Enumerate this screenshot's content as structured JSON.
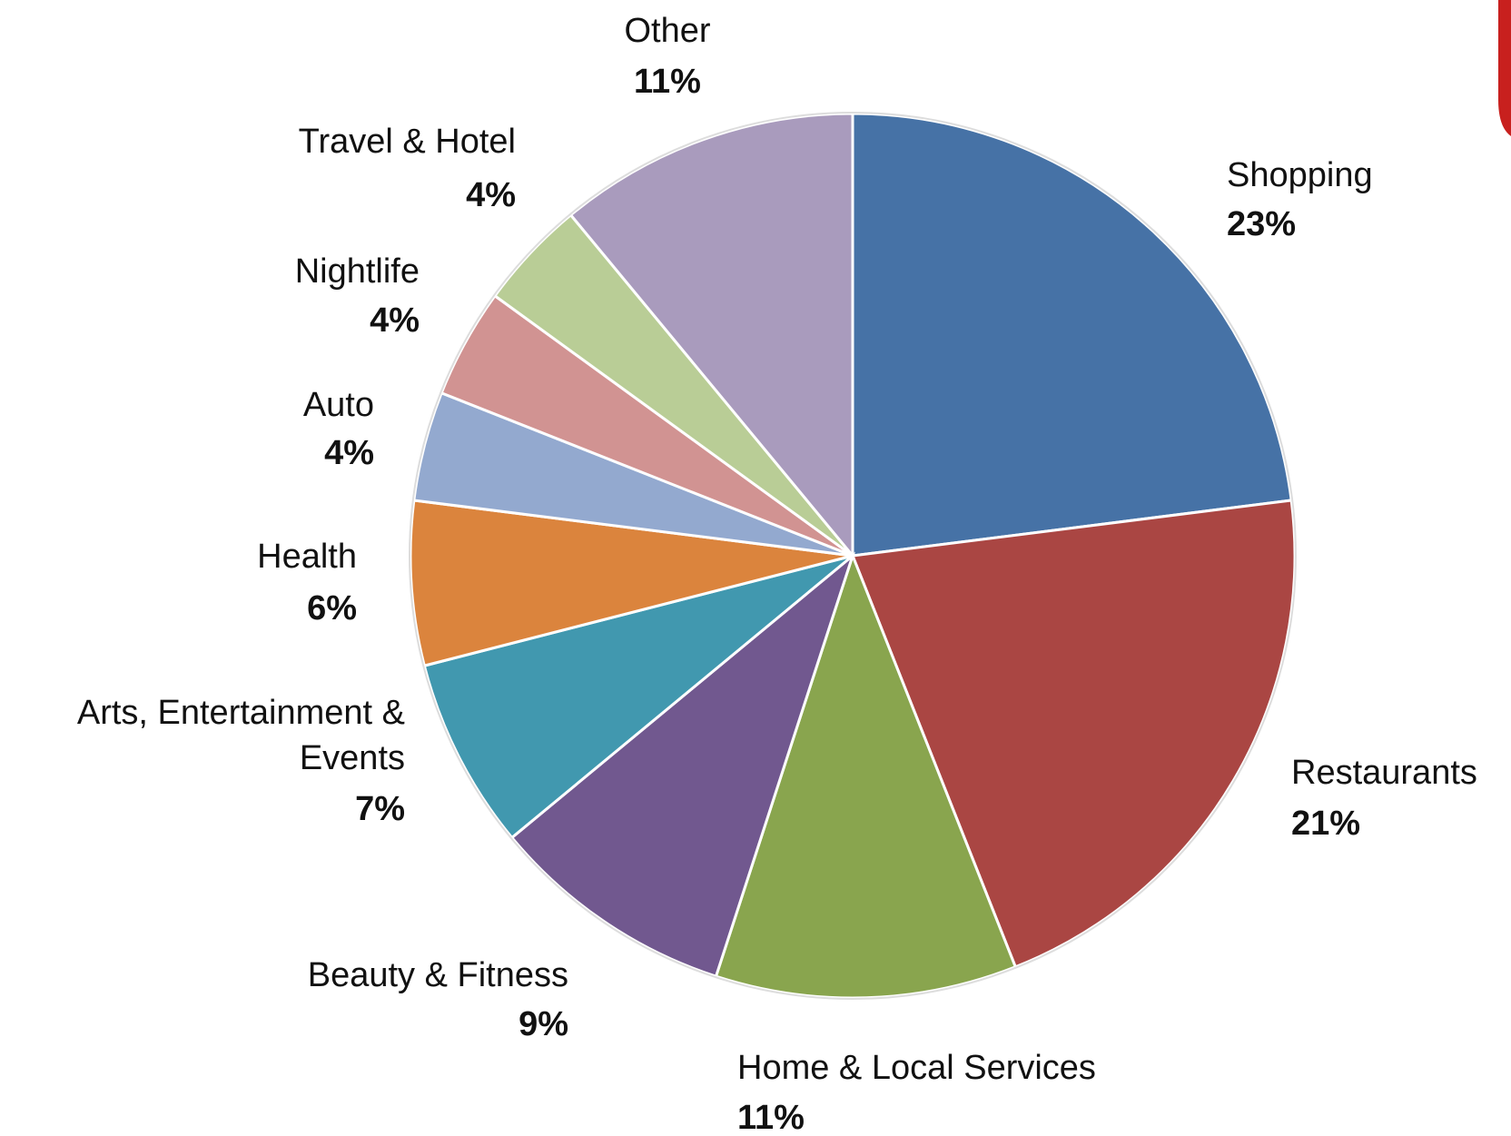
{
  "chart_data": {
    "type": "pie",
    "categories": [
      "Shopping",
      "Restaurants",
      "Home & Local Services",
      "Beauty & Fitness",
      "Arts, Entertainment & Events",
      "Health",
      "Auto",
      "Nightlife",
      "Travel & Hotel",
      "Other"
    ],
    "values": [
      23,
      21,
      11,
      9,
      7,
      6,
      4,
      4,
      4,
      11
    ],
    "value_labels": [
      "23%",
      "21%",
      "11%",
      "9%",
      "7%",
      "6%",
      "4%",
      "4%",
      "4%",
      "11%"
    ],
    "colors": [
      "#4672a6",
      "#aa4643",
      "#89a54e",
      "#71588f",
      "#4198af",
      "#db843d",
      "#93a9cf",
      "#d19392",
      "#b9cd96",
      "#a99bbd"
    ]
  }
}
